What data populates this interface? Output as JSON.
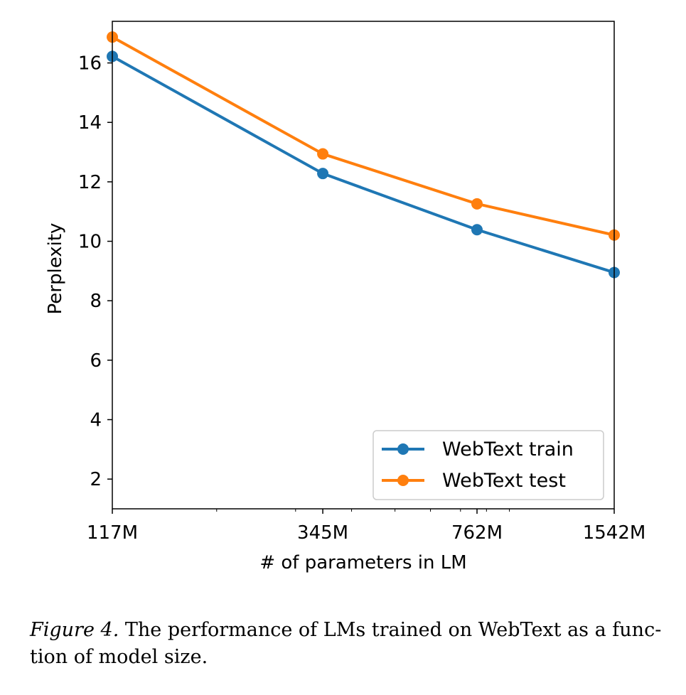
{
  "chart_data": {
    "type": "line",
    "title": "",
    "xlabel": "# of parameters in LM",
    "ylabel": "Perplexity",
    "x_scale": "log",
    "x": [
      117,
      345,
      762,
      1542
    ],
    "x_tick_labels": [
      "117M",
      "345M",
      "762M",
      "1542M"
    ],
    "xlim": [
      117,
      1542
    ],
    "ylim": [
      1,
      17.4
    ],
    "y_ticks": [
      2,
      4,
      6,
      8,
      10,
      12,
      14,
      16
    ],
    "grid": false,
    "legend_position": "bottom-right",
    "series": [
      {
        "name": "WebText train",
        "color": "#1f77b4",
        "values": [
          16.22,
          12.28,
          10.39,
          8.95
        ]
      },
      {
        "name": "WebText test",
        "color": "#ff7f0e",
        "values": [
          16.87,
          12.94,
          11.26,
          10.21
        ]
      }
    ]
  },
  "caption": {
    "figure_label": "Figure 4.",
    "text": "The performance of LMs trained on WebText as a func-",
    "text_line2": "tion of model size."
  }
}
